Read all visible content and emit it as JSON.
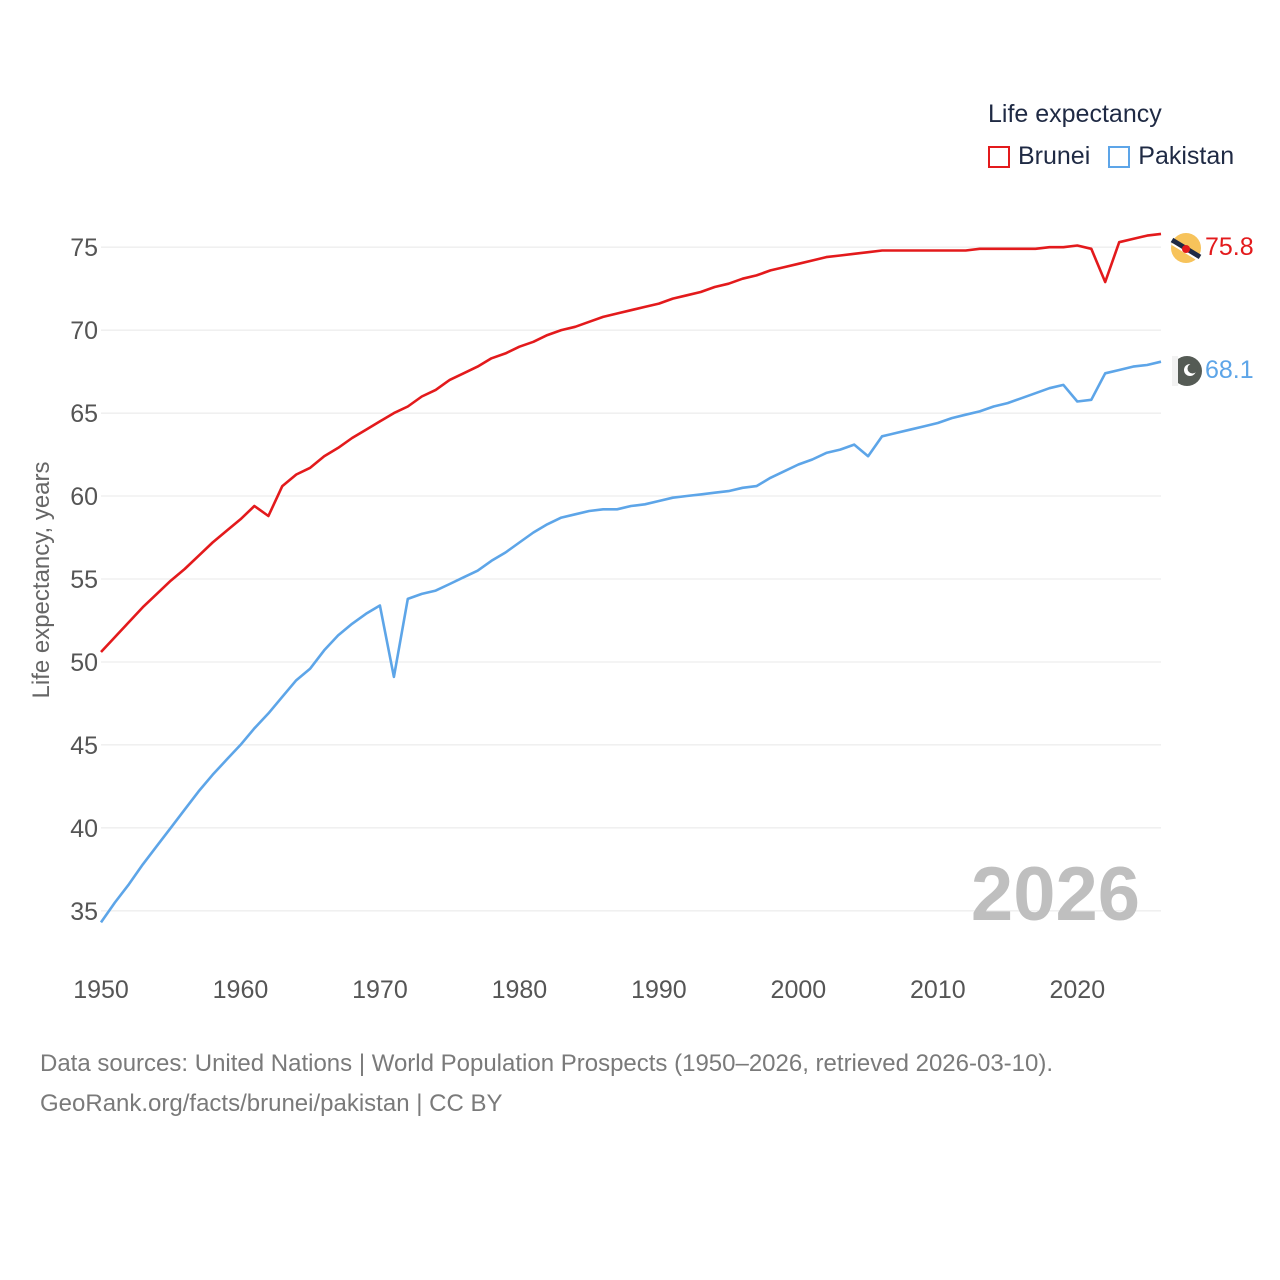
{
  "legend": {
    "title": "Life expectancy",
    "items": [
      {
        "label": "Brunei",
        "color": "#e31a1c"
      },
      {
        "label": "Pakistan",
        "color": "#5da5e8"
      }
    ]
  },
  "year_watermark": "2026",
  "footer": {
    "line1": "Data sources: United Nations | World Population Prospects (1950–2026, retrieved 2026-03-10).",
    "line2": "GeoRank.org/facts/brunei/pakistan | CC BY"
  },
  "chart_data": {
    "type": "line",
    "title": "",
    "xlabel": "",
    "ylabel": "Life expectancy, years",
    "xlim": [
      1950,
      2026
    ],
    "ylim": [
      33,
      77
    ],
    "x_ticks": [
      1950,
      1960,
      1970,
      1980,
      1990,
      2000,
      2010,
      2020
    ],
    "y_ticks": [
      35,
      40,
      45,
      50,
      55,
      60,
      65,
      70,
      75
    ],
    "grid": true,
    "series": [
      {
        "name": "Brunei",
        "color": "#e31a1c",
        "end_label": "75.8",
        "points": [
          [
            1950,
            50.6
          ],
          [
            1951,
            51.5
          ],
          [
            1952,
            52.4
          ],
          [
            1953,
            53.3
          ],
          [
            1954,
            54.1
          ],
          [
            1955,
            54.9
          ],
          [
            1956,
            55.6
          ],
          [
            1957,
            56.4
          ],
          [
            1958,
            57.2
          ],
          [
            1959,
            57.9
          ],
          [
            1960,
            58.6
          ],
          [
            1961,
            59.4
          ],
          [
            1962,
            58.8
          ],
          [
            1963,
            60.6
          ],
          [
            1964,
            61.3
          ],
          [
            1965,
            61.7
          ],
          [
            1966,
            62.4
          ],
          [
            1967,
            62.9
          ],
          [
            1968,
            63.5
          ],
          [
            1969,
            64.0
          ],
          [
            1970,
            64.5
          ],
          [
            1971,
            65.0
          ],
          [
            1972,
            65.4
          ],
          [
            1973,
            66.0
          ],
          [
            1974,
            66.4
          ],
          [
            1975,
            67.0
          ],
          [
            1976,
            67.4
          ],
          [
            1977,
            67.8
          ],
          [
            1978,
            68.3
          ],
          [
            1979,
            68.6
          ],
          [
            1980,
            69.0
          ],
          [
            1981,
            69.3
          ],
          [
            1982,
            69.7
          ],
          [
            1983,
            70.0
          ],
          [
            1984,
            70.2
          ],
          [
            1985,
            70.5
          ],
          [
            1986,
            70.8
          ],
          [
            1987,
            71.0
          ],
          [
            1988,
            71.2
          ],
          [
            1989,
            71.4
          ],
          [
            1990,
            71.6
          ],
          [
            1991,
            71.9
          ],
          [
            1992,
            72.1
          ],
          [
            1993,
            72.3
          ],
          [
            1994,
            72.6
          ],
          [
            1995,
            72.8
          ],
          [
            1996,
            73.1
          ],
          [
            1997,
            73.3
          ],
          [
            1998,
            73.6
          ],
          [
            1999,
            73.8
          ],
          [
            2000,
            74.0
          ],
          [
            2001,
            74.2
          ],
          [
            2002,
            74.4
          ],
          [
            2003,
            74.5
          ],
          [
            2004,
            74.6
          ],
          [
            2005,
            74.7
          ],
          [
            2006,
            74.8
          ],
          [
            2007,
            74.8
          ],
          [
            2008,
            74.8
          ],
          [
            2009,
            74.8
          ],
          [
            2010,
            74.8
          ],
          [
            2011,
            74.8
          ],
          [
            2012,
            74.8
          ],
          [
            2013,
            74.9
          ],
          [
            2014,
            74.9
          ],
          [
            2015,
            74.9
          ],
          [
            2016,
            74.9
          ],
          [
            2017,
            74.9
          ],
          [
            2018,
            75.0
          ],
          [
            2019,
            75.0
          ],
          [
            2020,
            75.1
          ],
          [
            2021,
            74.9
          ],
          [
            2022,
            72.9
          ],
          [
            2023,
            75.3
          ],
          [
            2024,
            75.5
          ],
          [
            2025,
            75.7
          ],
          [
            2026,
            75.8
          ]
        ]
      },
      {
        "name": "Pakistan",
        "color": "#5da5e8",
        "end_label": "68.1",
        "points": [
          [
            1950,
            34.3
          ],
          [
            1951,
            35.5
          ],
          [
            1952,
            36.6
          ],
          [
            1953,
            37.8
          ],
          [
            1954,
            38.9
          ],
          [
            1955,
            40.0
          ],
          [
            1956,
            41.1
          ],
          [
            1957,
            42.2
          ],
          [
            1958,
            43.2
          ],
          [
            1959,
            44.1
          ],
          [
            1960,
            45.0
          ],
          [
            1961,
            46.0
          ],
          [
            1962,
            46.9
          ],
          [
            1963,
            47.9
          ],
          [
            1964,
            48.9
          ],
          [
            1965,
            49.6
          ],
          [
            1966,
            50.7
          ],
          [
            1967,
            51.6
          ],
          [
            1968,
            52.3
          ],
          [
            1969,
            52.9
          ],
          [
            1970,
            53.4
          ],
          [
            1971,
            49.1
          ],
          [
            1972,
            53.8
          ],
          [
            1973,
            54.1
          ],
          [
            1974,
            54.3
          ],
          [
            1975,
            54.7
          ],
          [
            1976,
            55.1
          ],
          [
            1977,
            55.5
          ],
          [
            1978,
            56.1
          ],
          [
            1979,
            56.6
          ],
          [
            1980,
            57.2
          ],
          [
            1981,
            57.8
          ],
          [
            1982,
            58.3
          ],
          [
            1983,
            58.7
          ],
          [
            1984,
            58.9
          ],
          [
            1985,
            59.1
          ],
          [
            1986,
            59.2
          ],
          [
            1987,
            59.2
          ],
          [
            1988,
            59.4
          ],
          [
            1989,
            59.5
          ],
          [
            1990,
            59.7
          ],
          [
            1991,
            59.9
          ],
          [
            1992,
            60.0
          ],
          [
            1993,
            60.1
          ],
          [
            1994,
            60.2
          ],
          [
            1995,
            60.3
          ],
          [
            1996,
            60.5
          ],
          [
            1997,
            60.6
          ],
          [
            1998,
            61.1
          ],
          [
            1999,
            61.5
          ],
          [
            2000,
            61.9
          ],
          [
            2001,
            62.2
          ],
          [
            2002,
            62.6
          ],
          [
            2003,
            62.8
          ],
          [
            2004,
            63.1
          ],
          [
            2005,
            62.4
          ],
          [
            2006,
            63.6
          ],
          [
            2007,
            63.8
          ],
          [
            2008,
            64.0
          ],
          [
            2009,
            64.2
          ],
          [
            2010,
            64.4
          ],
          [
            2011,
            64.7
          ],
          [
            2012,
            64.9
          ],
          [
            2013,
            65.1
          ],
          [
            2014,
            65.4
          ],
          [
            2015,
            65.6
          ],
          [
            2016,
            65.9
          ],
          [
            2017,
            66.2
          ],
          [
            2018,
            66.5
          ],
          [
            2019,
            66.7
          ],
          [
            2020,
            65.7
          ],
          [
            2021,
            65.8
          ],
          [
            2022,
            67.4
          ],
          [
            2023,
            67.6
          ],
          [
            2024,
            67.8
          ],
          [
            2025,
            67.9
          ],
          [
            2026,
            68.1
          ]
        ]
      }
    ]
  }
}
